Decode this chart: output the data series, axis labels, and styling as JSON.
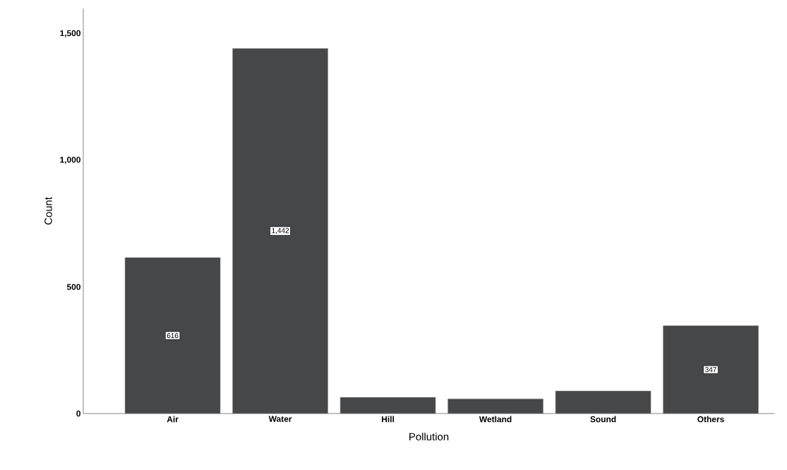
{
  "chart_data": {
    "type": "bar",
    "xlabel": "Pollution",
    "ylabel": "Count",
    "categories": [
      "Air",
      "Water",
      "Hill",
      "Wetland",
      "Sound",
      "Others"
    ],
    "values": [
      616,
      1442,
      64,
      58,
      89,
      347
    ],
    "value_labels": [
      "616",
      "1,442",
      null,
      null,
      null,
      "347"
    ],
    "color": "#464749",
    "ylim": [
      0,
      1600
    ],
    "yticks": [
      0,
      500,
      {
        "value": 1000,
        "label": "1,000"
      },
      {
        "value": 1500,
        "label": "1,500"
      }
    ],
    "grid": false
  }
}
